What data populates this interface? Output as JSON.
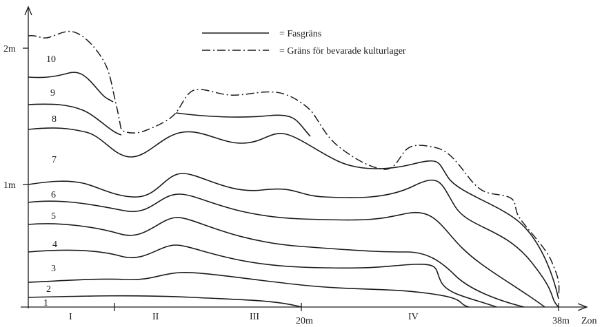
{
  "y_axis": {
    "tick_2m": "2m",
    "tick_1m": "1m"
  },
  "x_axis": {
    "label": "Zon",
    "tick_20m": "20m",
    "tick_38m": "38m"
  },
  "zones": [
    "I",
    "II",
    "III",
    "IV"
  ],
  "layers": [
    "1",
    "2",
    "3",
    "4",
    "5",
    "6",
    "7",
    "8",
    "9",
    "10"
  ],
  "legend": {
    "phase_boundary": "= Fasgräns",
    "preserved_limit": "= Gräns för bevarade kulturlager"
  }
}
